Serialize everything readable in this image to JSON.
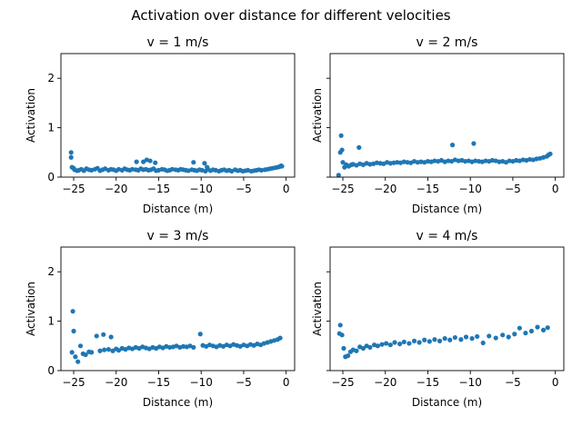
{
  "figure": {
    "suptitle": "Activation over distance for different velocities"
  },
  "colors": {
    "marker": "#1f77b4",
    "axes": "#000000",
    "background": "#ffffff"
  },
  "chart_data": [
    {
      "type": "scatter",
      "title": "v = 1 m/s",
      "xlabel": "Distance (m)",
      "ylabel": "Activation",
      "xlim": [
        -26.5,
        1.0
      ],
      "ylim": [
        0,
        2.5
      ],
      "xticks": [
        -25,
        -20,
        -15,
        -10,
        -5,
        0
      ],
      "yticks": [
        0,
        1,
        2
      ],
      "xtick_labels": [
        "−25",
        "−20",
        "−15",
        "−10",
        "−5",
        "0"
      ],
      "ytick_labels": [
        "0",
        "1",
        "2"
      ],
      "show_ytick_labels": true,
      "grid": false,
      "series": [
        {
          "x": [
            -25.3,
            -25.3,
            -25.2,
            -25.0,
            -24.9,
            -24.6,
            -24.4,
            -24.1,
            -23.8,
            -23.5,
            -23.2,
            -22.9,
            -22.5,
            -22.2,
            -21.9,
            -21.6,
            -21.3,
            -20.9,
            -20.6,
            -20.3,
            -20.0,
            -19.7,
            -19.3,
            -19.0,
            -18.7,
            -18.4,
            -18.1,
            -17.7,
            -17.4,
            -17.1,
            -16.8,
            -16.5,
            -16.2,
            -15.9,
            -15.6,
            -15.3,
            -15.0,
            -14.6,
            -14.3,
            -14.0,
            -13.7,
            -13.4,
            -13.0,
            -12.7,
            -12.4,
            -12.1,
            -11.8,
            -11.5,
            -11.1,
            -10.8,
            -10.5,
            -10.2,
            -9.9,
            -9.5,
            -9.2,
            -8.9,
            -8.6,
            -8.3,
            -7.9,
            -7.6,
            -7.3,
            -7.0,
            -6.7,
            -6.4,
            -6.0,
            -5.7,
            -5.4,
            -5.1,
            -4.8,
            -4.5,
            -4.1,
            -3.8,
            -3.5,
            -3.2,
            -2.9,
            -2.5,
            -2.2,
            -1.9,
            -1.6,
            -1.3,
            -1.0,
            -0.8,
            -0.6,
            -0.5,
            -17.6,
            -16.8,
            -16.4,
            -16.0,
            -15.4,
            -10.9,
            -9.6,
            -9.3
          ],
          "y": [
            0.5,
            0.4,
            0.2,
            0.18,
            0.15,
            0.13,
            0.14,
            0.16,
            0.13,
            0.17,
            0.15,
            0.14,
            0.16,
            0.18,
            0.13,
            0.15,
            0.17,
            0.14,
            0.16,
            0.15,
            0.13,
            0.16,
            0.14,
            0.17,
            0.15,
            0.14,
            0.16,
            0.15,
            0.14,
            0.17,
            0.15,
            0.16,
            0.14,
            0.15,
            0.17,
            0.13,
            0.14,
            0.16,
            0.15,
            0.13,
            0.14,
            0.16,
            0.15,
            0.14,
            0.16,
            0.15,
            0.14,
            0.13,
            0.15,
            0.14,
            0.13,
            0.15,
            0.14,
            0.12,
            0.16,
            0.13,
            0.15,
            0.14,
            0.12,
            0.14,
            0.15,
            0.13,
            0.14,
            0.12,
            0.15,
            0.13,
            0.14,
            0.12,
            0.13,
            0.14,
            0.12,
            0.13,
            0.14,
            0.15,
            0.14,
            0.15,
            0.16,
            0.17,
            0.18,
            0.19,
            0.2,
            0.21,
            0.23,
            0.22,
            0.31,
            0.31,
            0.35,
            0.33,
            0.29,
            0.3,
            0.28,
            0.2
          ]
        }
      ]
    },
    {
      "type": "scatter",
      "title": "v = 2 m/s",
      "xlabel": "Distance (m)",
      "ylabel": "Activation",
      "xlim": [
        -26.5,
        1.0
      ],
      "ylim": [
        0,
        2.5
      ],
      "xticks": [
        -25,
        -20,
        -15,
        -10,
        -5,
        0
      ],
      "yticks": [
        0,
        1,
        2
      ],
      "xtick_labels": [
        "−25",
        "−20",
        "−15",
        "−10",
        "−5",
        "0"
      ],
      "ytick_labels": [
        "0",
        "1",
        "2"
      ],
      "show_ytick_labels": false,
      "grid": false,
      "series": [
        {
          "x": [
            -25.5,
            -25.3,
            -25.2,
            -25.1,
            -25.0,
            -24.8,
            -24.6,
            -24.3,
            -24.0,
            -23.1,
            -23.8,
            -23.4,
            -23.0,
            -22.6,
            -22.2,
            -21.8,
            -21.4,
            -21.0,
            -20.6,
            -20.2,
            -19.8,
            -19.4,
            -19.0,
            -18.6,
            -18.2,
            -17.8,
            -17.4,
            -17.0,
            -16.6,
            -16.2,
            -15.8,
            -15.4,
            -15.0,
            -14.6,
            -14.2,
            -13.8,
            -13.4,
            -13.0,
            -12.6,
            -12.2,
            -11.8,
            -11.4,
            -11.0,
            -10.6,
            -10.2,
            -9.8,
            -9.4,
            -9.0,
            -8.6,
            -8.2,
            -7.8,
            -7.4,
            -7.0,
            -6.6,
            -6.2,
            -5.8,
            -5.4,
            -5.0,
            -4.6,
            -4.2,
            -3.8,
            -3.4,
            -3.0,
            -2.6,
            -2.2,
            -1.8,
            -1.4,
            -1.0,
            -0.8,
            -0.6,
            -12.1,
            -9.6
          ],
          "y": [
            0.04,
            0.5,
            0.84,
            0.55,
            0.3,
            0.2,
            0.25,
            0.22,
            0.25,
            0.6,
            0.26,
            0.24,
            0.27,
            0.25,
            0.28,
            0.26,
            0.27,
            0.29,
            0.28,
            0.27,
            0.3,
            0.28,
            0.29,
            0.3,
            0.29,
            0.31,
            0.3,
            0.29,
            0.32,
            0.3,
            0.31,
            0.3,
            0.32,
            0.31,
            0.33,
            0.32,
            0.34,
            0.31,
            0.33,
            0.32,
            0.35,
            0.33,
            0.34,
            0.32,
            0.33,
            0.31,
            0.33,
            0.32,
            0.31,
            0.33,
            0.32,
            0.34,
            0.33,
            0.31,
            0.32,
            0.3,
            0.33,
            0.32,
            0.34,
            0.33,
            0.35,
            0.34,
            0.36,
            0.35,
            0.37,
            0.38,
            0.4,
            0.42,
            0.45,
            0.47,
            0.65,
            0.68
          ]
        }
      ]
    },
    {
      "type": "scatter",
      "title": "v = 3 m/s",
      "xlabel": "Distance (m)",
      "ylabel": "Activation",
      "xlim": [
        -26.5,
        1.0
      ],
      "ylim": [
        0,
        2.5
      ],
      "xticks": [
        -25,
        -20,
        -15,
        -10,
        -5,
        0
      ],
      "yticks": [
        0,
        1,
        2
      ],
      "xtick_labels": [
        "−25",
        "−20",
        "−15",
        "−10",
        "−5",
        "0"
      ],
      "ytick_labels": [
        "0",
        "1",
        "2"
      ],
      "show_ytick_labels": true,
      "grid": false,
      "series": [
        {
          "x": [
            -25.2,
            -25.1,
            -25.0,
            -24.8,
            -24.5,
            -24.2,
            -23.9,
            -23.6,
            -23.2,
            -22.9,
            -22.3,
            -21.9,
            -21.4,
            -20.9,
            -20.4,
            -20.0,
            -19.7,
            -19.3,
            -18.9,
            -18.5,
            -18.1,
            -17.7,
            -17.3,
            -16.9,
            -16.5,
            -16.1,
            -15.7,
            -15.3,
            -14.9,
            -14.5,
            -14.1,
            -13.7,
            -13.3,
            -12.9,
            -12.5,
            -12.1,
            -11.7,
            -11.3,
            -10.9,
            -10.1,
            -9.8,
            -9.4,
            -9.0,
            -8.6,
            -8.2,
            -7.8,
            -7.4,
            -7.0,
            -6.6,
            -6.2,
            -5.8,
            -5.4,
            -5.0,
            -4.6,
            -4.2,
            -3.8,
            -3.4,
            -3.0,
            -2.6,
            -2.2,
            -1.8,
            -1.4,
            -1.0,
            -0.7,
            -21.5,
            -20.6
          ],
          "y": [
            0.37,
            1.2,
            0.8,
            0.28,
            0.18,
            0.5,
            0.34,
            0.32,
            0.38,
            0.37,
            0.7,
            0.4,
            0.42,
            0.43,
            0.4,
            0.44,
            0.41,
            0.45,
            0.43,
            0.46,
            0.44,
            0.47,
            0.45,
            0.48,
            0.46,
            0.44,
            0.47,
            0.45,
            0.48,
            0.46,
            0.49,
            0.47,
            0.48,
            0.5,
            0.47,
            0.49,
            0.48,
            0.5,
            0.47,
            0.74,
            0.51,
            0.49,
            0.52,
            0.5,
            0.48,
            0.51,
            0.49,
            0.52,
            0.5,
            0.53,
            0.51,
            0.49,
            0.52,
            0.5,
            0.53,
            0.51,
            0.54,
            0.52,
            0.55,
            0.57,
            0.59,
            0.61,
            0.63,
            0.66,
            0.73,
            0.68
          ]
        }
      ]
    },
    {
      "type": "scatter",
      "title": "v = 4 m/s",
      "xlabel": "Distance (m)",
      "ylabel": "Activation",
      "xlim": [
        -26.5,
        1.0
      ],
      "ylim": [
        0,
        2.5
      ],
      "xticks": [
        -25,
        -20,
        -15,
        -10,
        -5,
        0
      ],
      "yticks": [
        0,
        1,
        2
      ],
      "xtick_labels": [
        "−25",
        "−20",
        "−15",
        "−10",
        "−5",
        "0"
      ],
      "ytick_labels": [
        "0",
        "1",
        "2"
      ],
      "show_ytick_labels": false,
      "grid": false,
      "series": [
        {
          "x": [
            -25.4,
            -25.3,
            -25.1,
            -24.9,
            -24.7,
            -24.4,
            -24.1,
            -23.8,
            -23.4,
            -23.0,
            -22.6,
            -22.2,
            -21.8,
            -21.3,
            -20.9,
            -20.4,
            -19.9,
            -19.4,
            -18.9,
            -18.3,
            -17.8,
            -17.2,
            -16.6,
            -16.0,
            -15.4,
            -14.8,
            -14.2,
            -13.6,
            -13.0,
            -12.4,
            -11.8,
            -11.1,
            -10.5,
            -9.8,
            -9.2,
            -8.5,
            -7.8,
            -7.0,
            -6.2,
            -5.5,
            -4.8,
            -4.2,
            -3.5,
            -2.8,
            -2.1,
            -1.4,
            -0.9
          ],
          "y": [
            0.75,
            0.92,
            0.72,
            0.45,
            0.28,
            0.3,
            0.38,
            0.42,
            0.4,
            0.48,
            0.45,
            0.5,
            0.47,
            0.52,
            0.5,
            0.53,
            0.55,
            0.52,
            0.57,
            0.54,
            0.58,
            0.55,
            0.6,
            0.57,
            0.62,
            0.59,
            0.63,
            0.6,
            0.65,
            0.62,
            0.67,
            0.63,
            0.68,
            0.65,
            0.69,
            0.56,
            0.7,
            0.66,
            0.72,
            0.68,
            0.74,
            0.86,
            0.76,
            0.8,
            0.88,
            0.82,
            0.87
          ]
        }
      ]
    }
  ]
}
